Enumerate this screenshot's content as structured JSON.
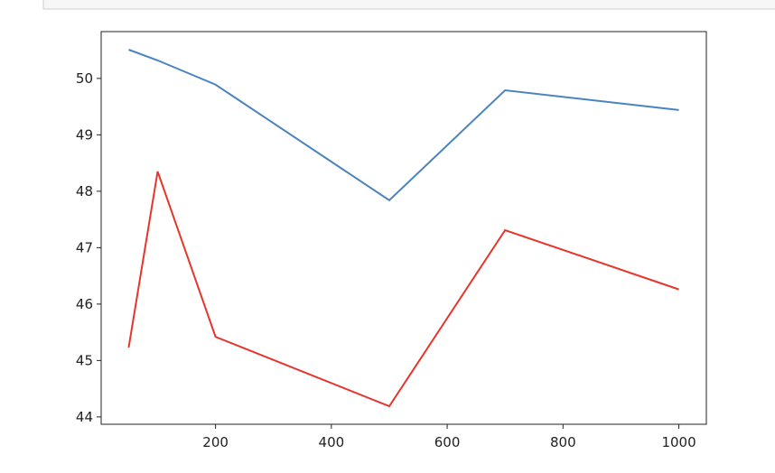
{
  "chart_data": {
    "type": "line",
    "x": [
      50,
      100,
      200,
      500,
      700,
      1000
    ],
    "series": [
      {
        "color": "#4a84c0",
        "values": [
          50.51,
          50.32,
          49.89,
          47.84,
          49.79,
          49.44
        ]
      },
      {
        "color": "#e8352c",
        "values": [
          45.23,
          48.35,
          45.42,
          44.19,
          47.31,
          46.26
        ]
      }
    ],
    "xlim": [
      2.5,
      1047.5
    ],
    "xticks": [
      200,
      400,
      600,
      800,
      1000
    ],
    "ylim": [
      43.87,
      50.83
    ],
    "yticks": [
      44,
      45,
      46,
      47,
      48,
      49,
      50
    ],
    "grid": false
  }
}
